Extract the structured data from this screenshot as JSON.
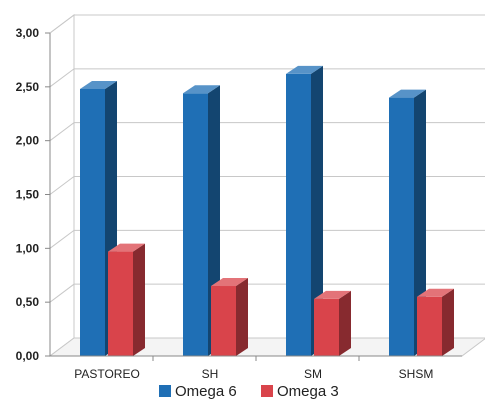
{
  "chart_data": {
    "type": "bar",
    "title": "",
    "xlabel": "",
    "ylabel": "",
    "categories": [
      "PASTOREO",
      "SH",
      "SM",
      "SHSM"
    ],
    "series": [
      {
        "name": "Omega 6",
        "values": [
          2.48,
          2.44,
          2.62,
          2.4
        ],
        "color": "#1f6fb5"
      },
      {
        "name": "Omega 3",
        "values": [
          0.97,
          0.65,
          0.53,
          0.55
        ],
        "color": "#d9444b"
      }
    ],
    "ylim": [
      0,
      3
    ],
    "yticks": [
      "0,00",
      "0,50",
      "1,00",
      "1,50",
      "2,00",
      "2,50",
      "3,00"
    ],
    "grid": true,
    "legend": "bottom",
    "style": "3d-column"
  }
}
